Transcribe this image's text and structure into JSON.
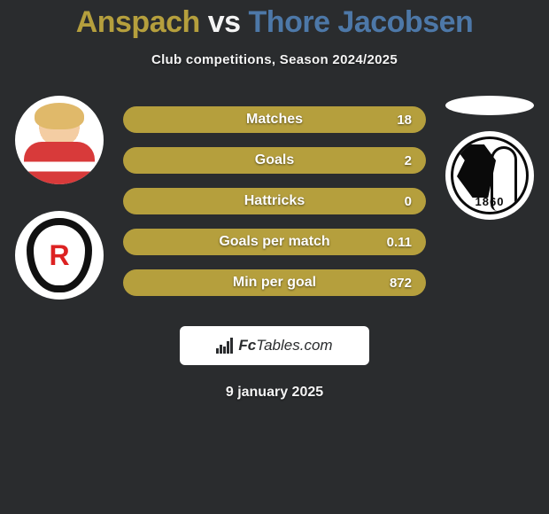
{
  "title": {
    "player1": "Anspach",
    "vs": "vs",
    "player2": "Thore Jacobsen",
    "color_player1": "#b59f3d",
    "color_vs": "#f4f4f4",
    "color_player2": "#4d78a8"
  },
  "subtitle": "Club competitions, Season 2024/2025",
  "stats": [
    {
      "label": "Matches",
      "value": "18",
      "bg": "#b59f3d"
    },
    {
      "label": "Goals",
      "value": "2",
      "bg": "#b59f3d"
    },
    {
      "label": "Hattricks",
      "value": "0",
      "bg": "#b59f3d"
    },
    {
      "label": "Goals per match",
      "value": "0.11",
      "bg": "#b59f3d"
    },
    {
      "label": "Min per goal",
      "value": "872",
      "bg": "#b59f3d"
    }
  ],
  "brand": {
    "text1": "Fc",
    "text2": "Tables",
    "suffix": ".com"
  },
  "date": "9 january 2025",
  "right_club_year": "1860",
  "left_club_letter": "R",
  "background_color": "#2a2c2e",
  "text_color": "#f4f4f4",
  "stat_row_height": 30,
  "stat_row_gap": 16
}
